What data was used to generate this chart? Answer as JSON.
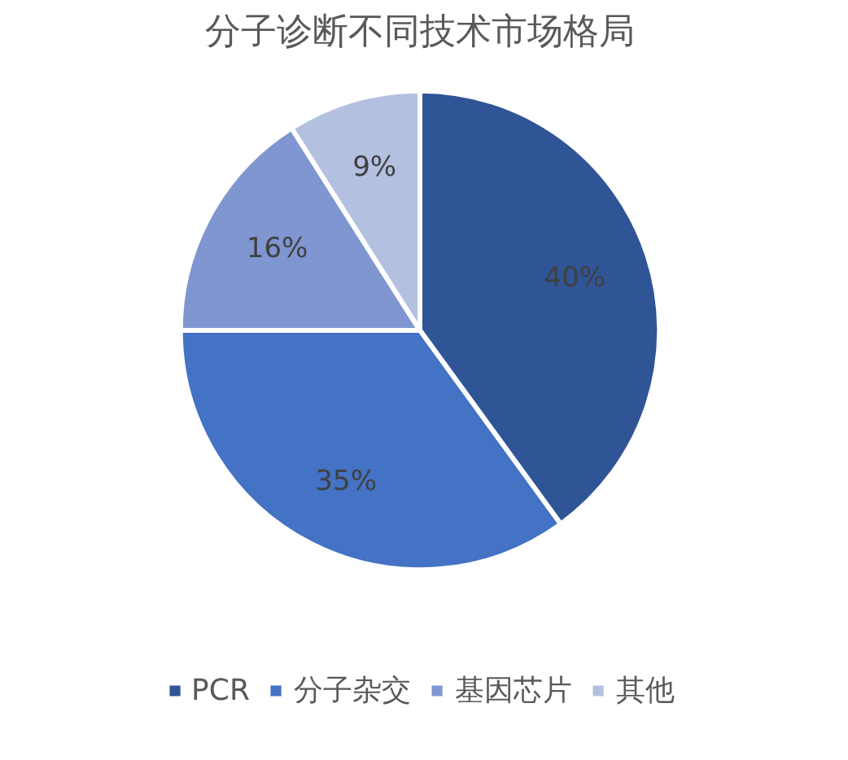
{
  "chart_data": {
    "type": "pie",
    "title": "分子诊断不同技术市场格局",
    "categories": [
      "PCR",
      "分子杂交",
      "基因芯片",
      "其他"
    ],
    "values": [
      40,
      35,
      16,
      9
    ],
    "colors": [
      "#2f5597",
      "#4472c4",
      "#7f96d0",
      "#b4c0e0"
    ],
    "value_labels": [
      "40%",
      "35%",
      "16%",
      "9%"
    ],
    "legend": "bottom"
  }
}
